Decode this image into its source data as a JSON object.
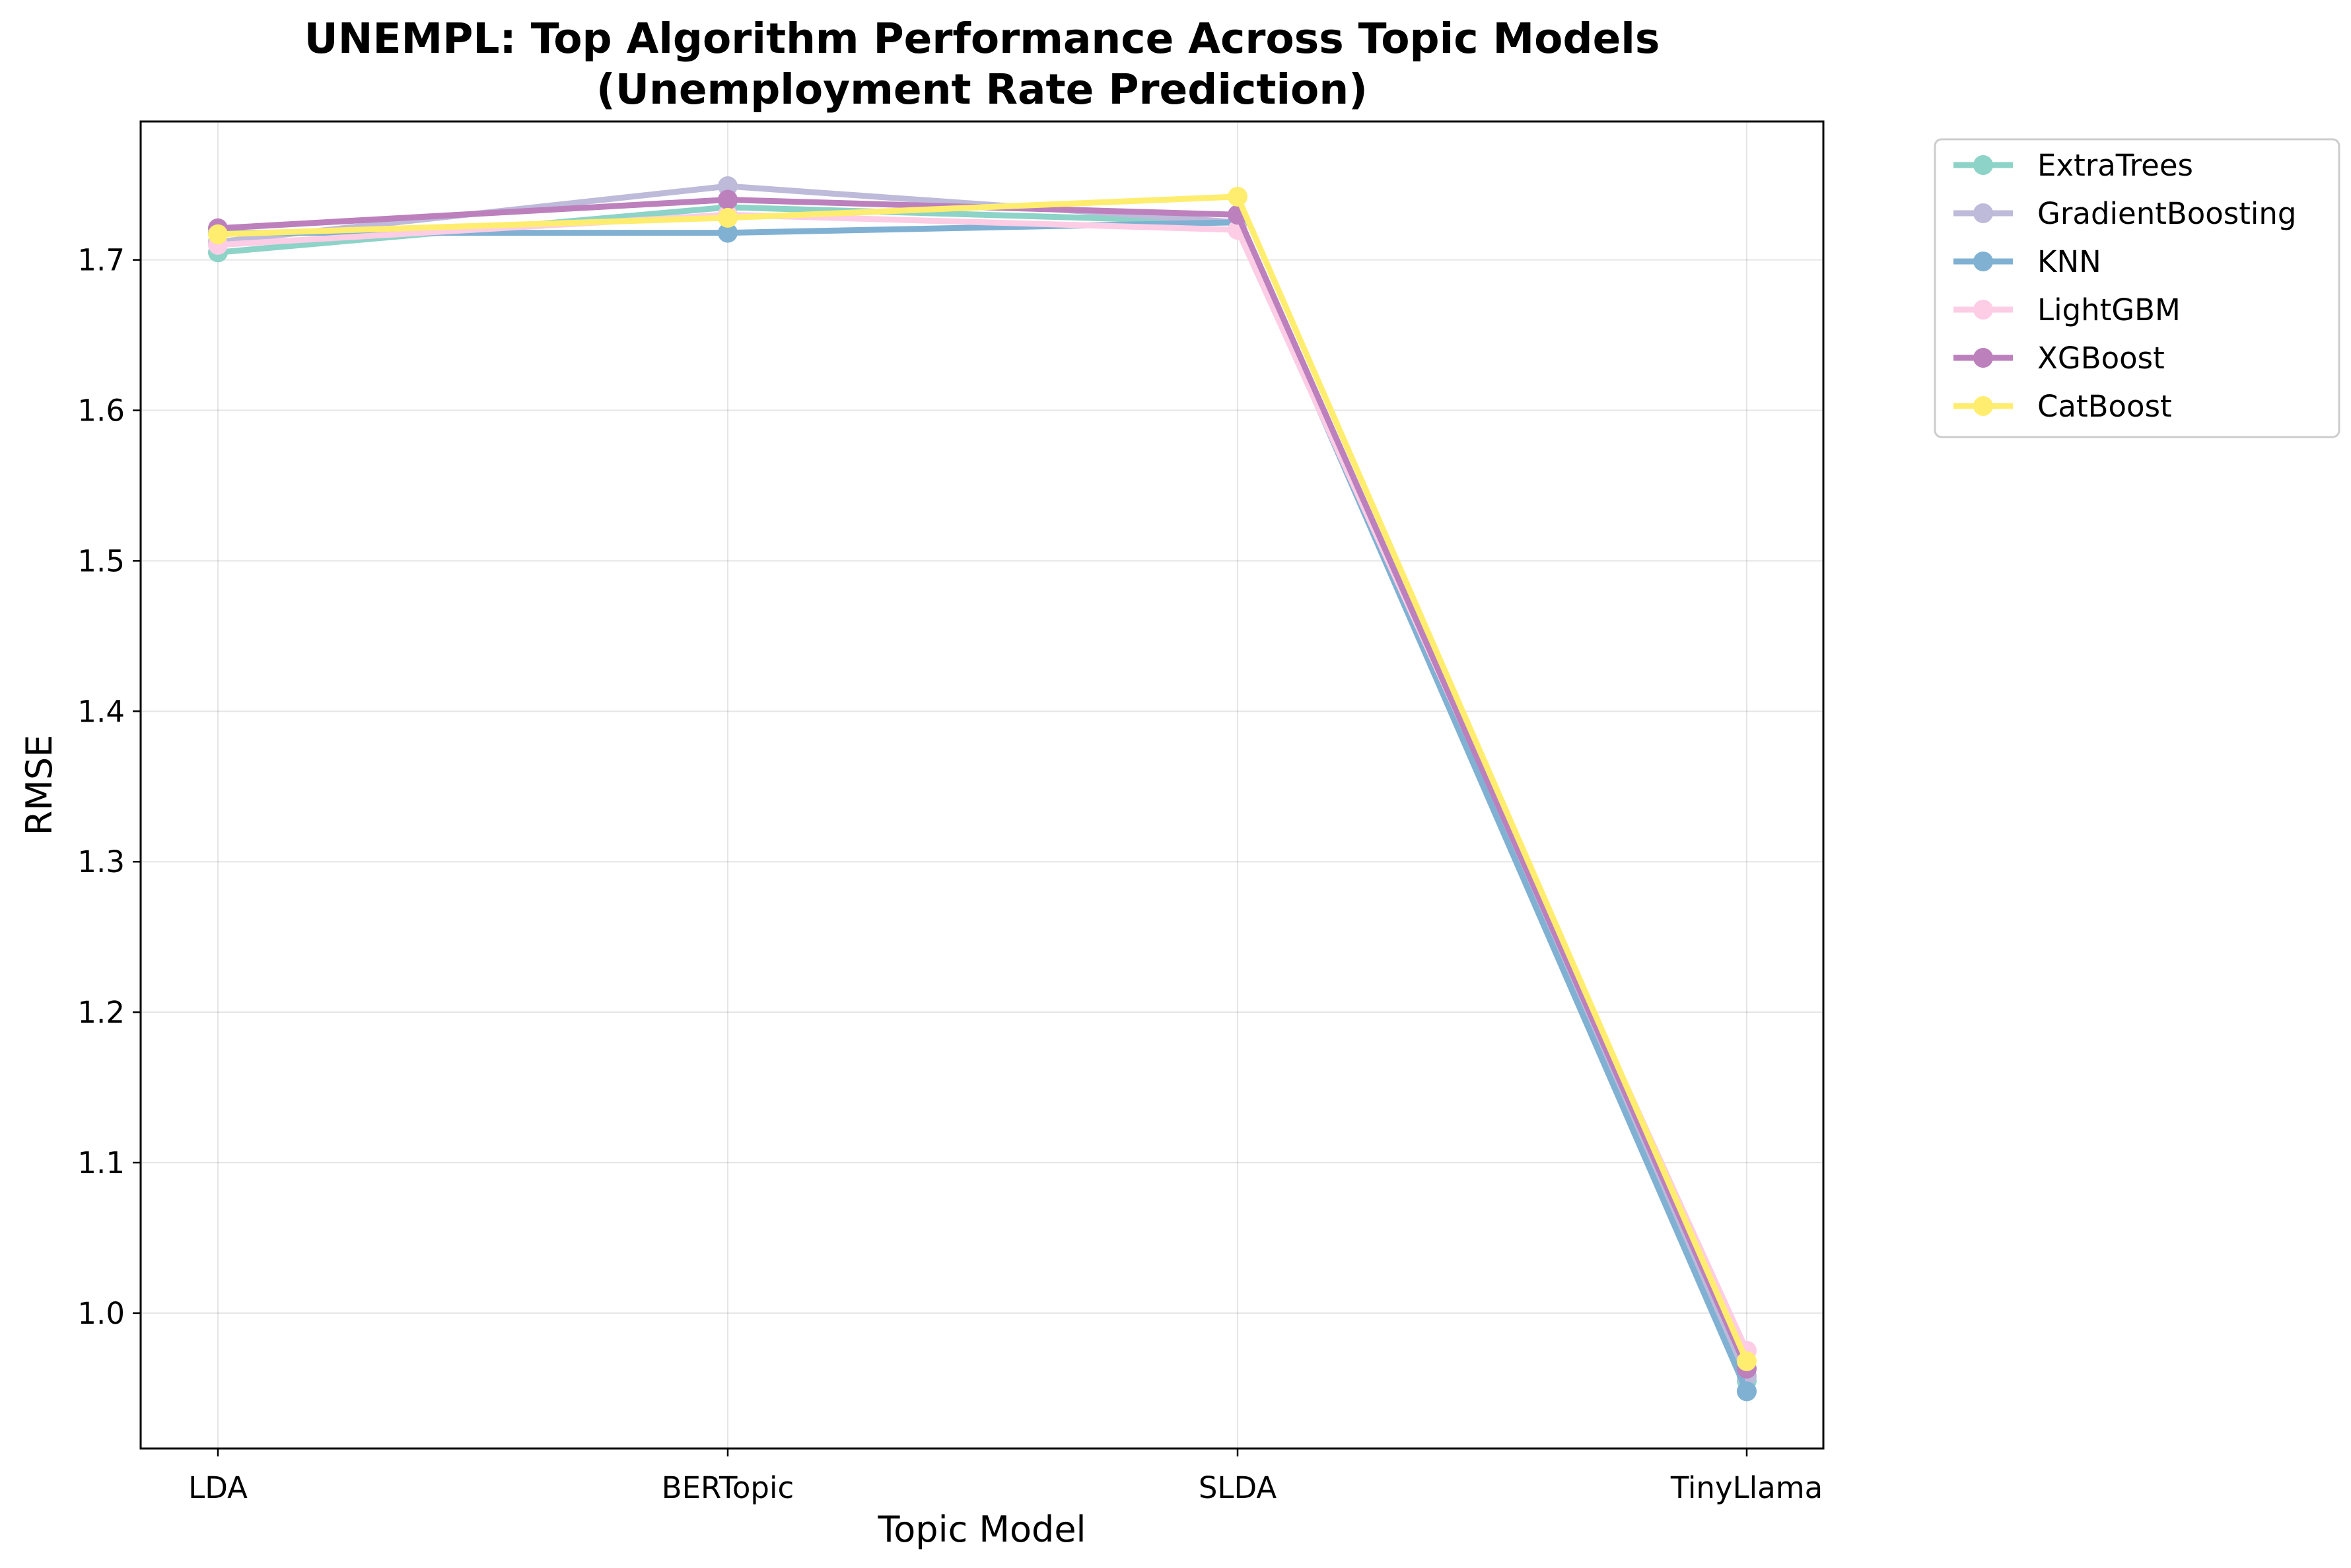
{
  "chart_data": {
    "type": "line",
    "title_line1": "UNEMPL: Top Algorithm Performance Across Topic Models",
    "title_line2": "(Unemployment Rate Prediction)",
    "xlabel": "Topic Model",
    "ylabel": "RMSE",
    "categories": [
      "LDA",
      "BERTopic",
      "SLDA",
      "TinyLlama"
    ],
    "ylim": [
      0.91,
      1.792
    ],
    "yticks": [
      "1.0",
      "1.1",
      "1.2",
      "1.3",
      "1.4",
      "1.5",
      "1.6",
      "1.7"
    ],
    "grid": true,
    "legend_position": "outside-upper-right",
    "series": [
      {
        "name": "ExtraTrees",
        "color": "#8dd3c7",
        "values": [
          1.705,
          1.735,
          1.725,
          0.955
        ]
      },
      {
        "name": "GradientBoosting",
        "color": "#bebada",
        "values": [
          1.712,
          1.749,
          1.725,
          0.958
        ]
      },
      {
        "name": "KNN",
        "color": "#80b1d3",
        "values": [
          1.718,
          1.718,
          1.725,
          0.948
        ]
      },
      {
        "name": "LightGBM",
        "color": "#fccde5",
        "values": [
          1.71,
          1.73,
          1.72,
          0.975
        ]
      },
      {
        "name": "XGBoost",
        "color": "#bc80bd",
        "values": [
          1.721,
          1.74,
          1.73,
          0.963
        ]
      },
      {
        "name": "CatBoost",
        "color": "#ffed6f",
        "values": [
          1.717,
          1.728,
          1.742,
          0.968
        ]
      }
    ]
  }
}
